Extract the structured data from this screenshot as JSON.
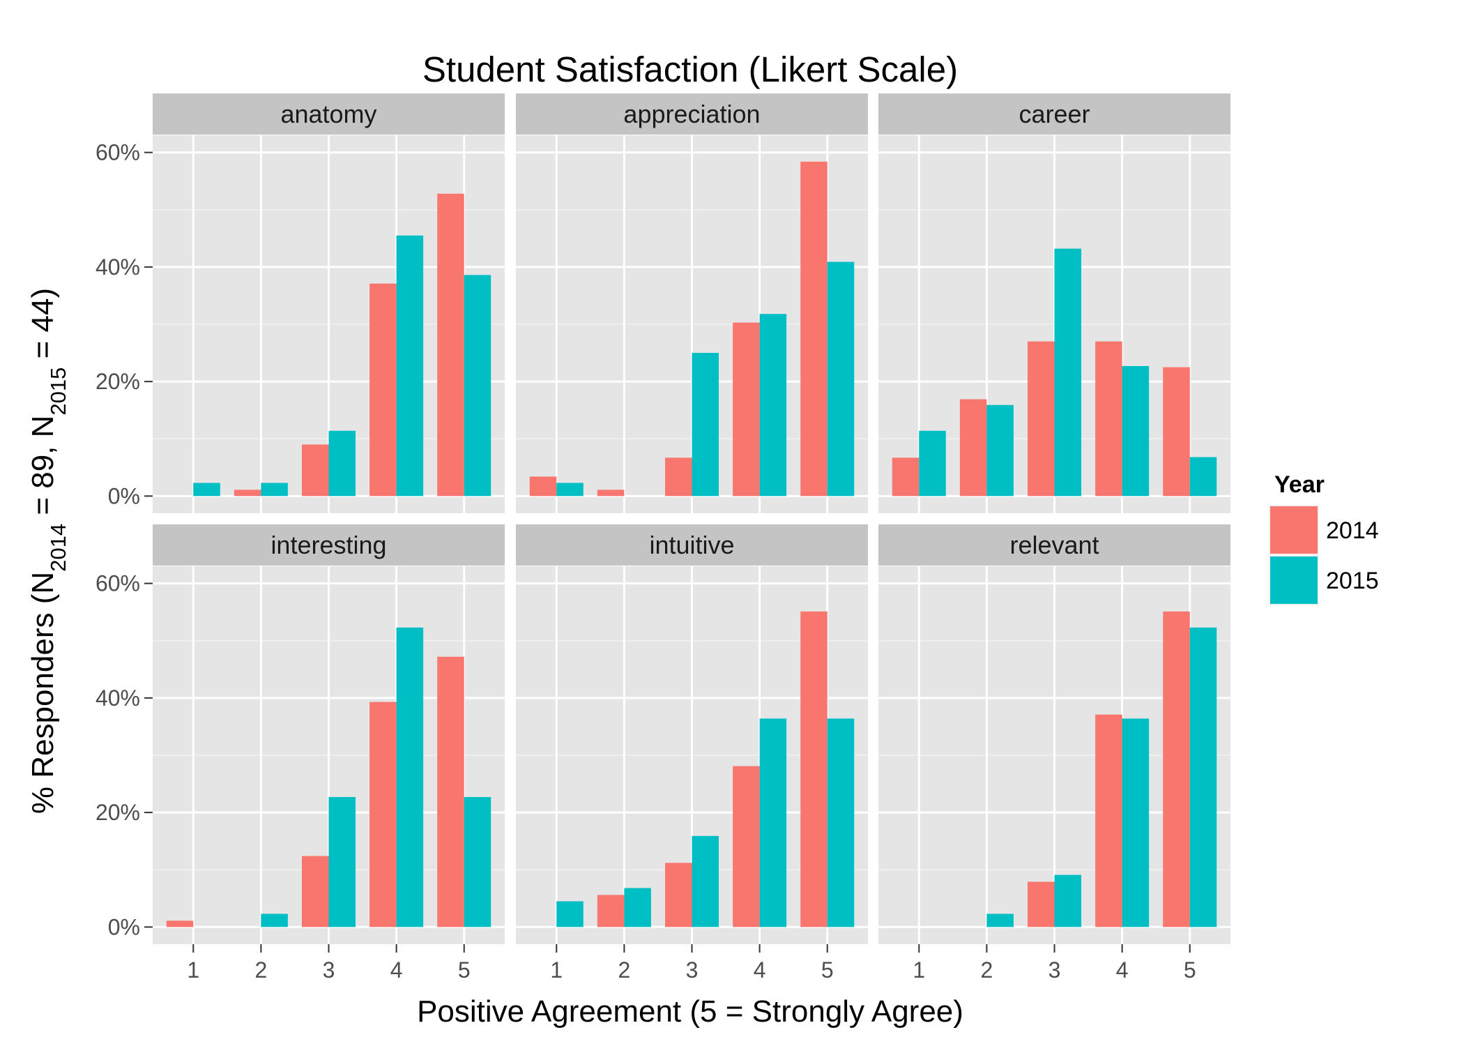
{
  "chart_data": {
    "type": "bar",
    "title": "Student Satisfaction (Likert Scale)",
    "xlabel": "Positive Agreement (5 = Strongly Agree)",
    "ylabel_parts": {
      "prefix": "% Responders (N",
      "sub1": "2014",
      "mid": " = 89, N",
      "sub2": "2015",
      "suffix": " = 44)"
    },
    "x_ticks": [
      "1",
      "2",
      "3",
      "4",
      "5"
    ],
    "y_ticks": [
      "0%",
      "20%",
      "40%",
      "60%"
    ],
    "y_tick_values": [
      0,
      20,
      40,
      60
    ],
    "ylim": [
      -3,
      63
    ],
    "grid": true,
    "legend": {
      "title": "Year",
      "position": "right",
      "entries": [
        {
          "label": "2014",
          "color": "#F8766D"
        },
        {
          "label": "2015",
          "color": "#00BFC4"
        }
      ]
    },
    "facets": [
      {
        "name": "anatomy",
        "series": [
          {
            "name": "2014",
            "values": [
              0,
              1.1,
              9.0,
              37.1,
              52.8
            ]
          },
          {
            "name": "2015",
            "values": [
              2.3,
              2.3,
              11.4,
              45.5,
              38.6
            ]
          }
        ]
      },
      {
        "name": "appreciation",
        "series": [
          {
            "name": "2014",
            "values": [
              3.4,
              1.1,
              6.7,
              30.3,
              58.4
            ]
          },
          {
            "name": "2015",
            "values": [
              2.3,
              0,
              25.0,
              31.8,
              40.9
            ]
          }
        ]
      },
      {
        "name": "career",
        "series": [
          {
            "name": "2014",
            "values": [
              6.7,
              16.9,
              27.0,
              27.0,
              22.5
            ]
          },
          {
            "name": "2015",
            "values": [
              11.4,
              15.9,
              43.2,
              22.7,
              6.8
            ]
          }
        ]
      },
      {
        "name": "interesting",
        "series": [
          {
            "name": "2014",
            "values": [
              1.1,
              0,
              12.4,
              39.3,
              47.2
            ]
          },
          {
            "name": "2015",
            "values": [
              0,
              2.3,
              22.7,
              52.3,
              22.7
            ]
          }
        ]
      },
      {
        "name": "intuitive",
        "series": [
          {
            "name": "2014",
            "values": [
              0,
              5.6,
              11.2,
              28.1,
              55.1
            ]
          },
          {
            "name": "2015",
            "values": [
              4.5,
              6.8,
              15.9,
              36.4,
              36.4
            ]
          }
        ]
      },
      {
        "name": "relevant",
        "series": [
          {
            "name": "2014",
            "values": [
              0,
              0,
              7.9,
              37.1,
              55.1
            ]
          },
          {
            "name": "2015",
            "values": [
              0,
              2.3,
              9.1,
              36.4,
              52.3
            ]
          }
        ]
      }
    ]
  }
}
